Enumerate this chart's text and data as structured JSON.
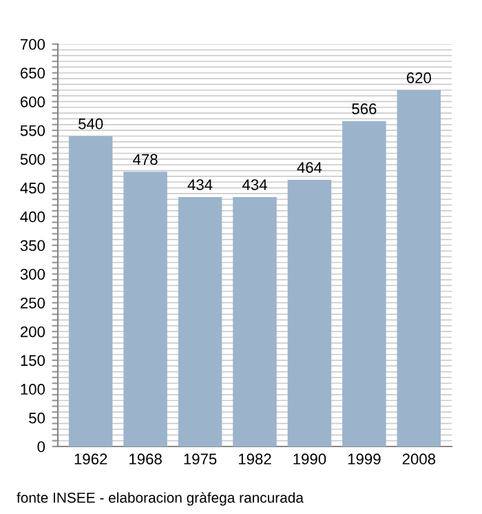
{
  "chart_data": {
    "type": "bar",
    "categories": [
      "1962",
      "1968",
      "1975",
      "1982",
      "1990",
      "1999",
      "2008"
    ],
    "values": [
      540,
      478,
      434,
      434,
      464,
      566,
      620
    ],
    "color": "#9bb4cc",
    "data_labels": true,
    "grid": "y",
    "ylim": [
      0,
      700
    ],
    "yticks": [
      0,
      {
        "value": 10,
        "label": null
      },
      {
        "value": 20,
        "label": null
      },
      {
        "value": 30,
        "label": null
      },
      {
        "value": 40,
        "label": null
      },
      50,
      {
        "value": 60,
        "label": null
      },
      {
        "value": 70,
        "label": null
      },
      {
        "value": 80,
        "label": null
      },
      {
        "value": 90,
        "label": null
      },
      100,
      {
        "value": 110,
        "label": null
      },
      {
        "value": 120,
        "label": null
      },
      {
        "value": 130,
        "label": null
      },
      {
        "value": 140,
        "label": null
      },
      150,
      {
        "value": 160,
        "label": null
      },
      {
        "value": 170,
        "label": null
      },
      {
        "value": 180,
        "label": null
      },
      {
        "value": 190,
        "label": null
      },
      200,
      {
        "value": 210,
        "label": null
      },
      {
        "value": 220,
        "label": null
      },
      {
        "value": 230,
        "label": null
      },
      {
        "value": 240,
        "label": null
      },
      250,
      {
        "value": 260,
        "label": null
      },
      {
        "value": 270,
        "label": null
      },
      {
        "value": 280,
        "label": null
      },
      {
        "value": 290,
        "label": null
      },
      300,
      {
        "value": 310,
        "label": null
      },
      {
        "value": 320,
        "label": null
      },
      {
        "value": 330,
        "label": null
      },
      {
        "value": 340,
        "label": null
      },
      350,
      {
        "value": 360,
        "label": null
      },
      {
        "value": 370,
        "label": null
      },
      {
        "value": 380,
        "label": null
      },
      {
        "value": 390,
        "label": null
      },
      400,
      {
        "value": 410,
        "label": null
      },
      {
        "value": 420,
        "label": null
      },
      {
        "value": 430,
        "label": null
      },
      {
        "value": 440,
        "label": null
      },
      450,
      {
        "value": 460,
        "label": null
      },
      {
        "value": 470,
        "label": null
      },
      {
        "value": 480,
        "label": null
      },
      {
        "value": 490,
        "label": null
      },
      500,
      {
        "value": 510,
        "label": null
      },
      {
        "value": 520,
        "label": null
      },
      {
        "value": 530,
        "label": null
      },
      {
        "value": 540,
        "label": null
      },
      550,
      {
        "value": 560,
        "label": null
      },
      {
        "value": 570,
        "label": null
      },
      {
        "value": 580,
        "label": null
      },
      {
        "value": 590,
        "label": null
      },
      600,
      {
        "value": 610,
        "label": null
      },
      {
        "value": 620,
        "label": null
      },
      {
        "value": 630,
        "label": null
      },
      {
        "value": 640,
        "label": null
      },
      650,
      {
        "value": 660,
        "label": null
      },
      {
        "value": 670,
        "label": null
      },
      {
        "value": 680,
        "label": null
      },
      {
        "value": 690,
        "label": null
      },
      700
    ],
    "annotations": [
      "fonte INSEE - elaboracion gràfega rancurada"
    ]
  }
}
